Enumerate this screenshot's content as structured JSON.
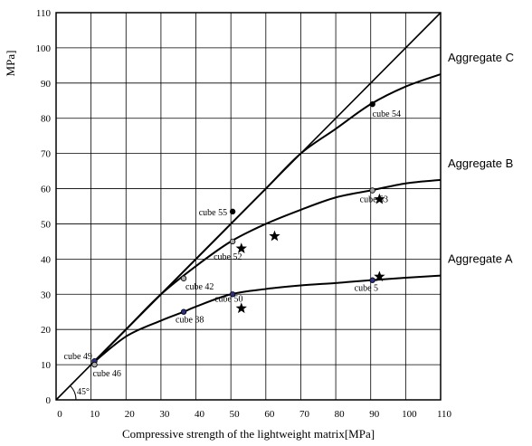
{
  "chart_data": {
    "type": "scatter",
    "title": "",
    "xlabel": "Compressive strength of the lightweight matrix[MPa]",
    "ylabel": "MPa]",
    "xlim": [
      0,
      110
    ],
    "ylim": [
      0,
      110
    ],
    "xticks": [
      0,
      10,
      20,
      30,
      40,
      50,
      60,
      70,
      80,
      90,
      100,
      110
    ],
    "yticks": [
      0,
      10,
      20,
      30,
      40,
      50,
      60,
      70,
      80,
      90,
      100,
      110
    ],
    "grid": true,
    "angle_label": "45°",
    "reference_line": {
      "x": [
        0,
        110
      ],
      "y": [
        0,
        110
      ]
    },
    "curves": [
      {
        "name": "Aggregate C",
        "x": [
          10,
          20,
          30,
          40,
          50,
          60,
          70,
          80,
          90,
          100,
          110
        ],
        "y": [
          10,
          20,
          30,
          40,
          50,
          60,
          70,
          77,
          84,
          89,
          92.5
        ]
      },
      {
        "name": "Aggregate B",
        "x": [
          10,
          20,
          30,
          40,
          50,
          60,
          70,
          80,
          90,
          100,
          110
        ],
        "y": [
          10,
          20,
          30,
          38,
          45,
          50,
          54,
          57.5,
          59.5,
          61.5,
          62.5
        ]
      },
      {
        "name": "Aggregate A",
        "x": [
          10,
          20,
          30,
          36.5,
          40,
          50,
          60,
          70,
          80,
          90,
          100,
          110
        ],
        "y": [
          10,
          18,
          22.5,
          25,
          26.5,
          30,
          31.5,
          32.5,
          33.2,
          34,
          34.7,
          35.3
        ]
      }
    ],
    "points": [
      {
        "label": "cube 54",
        "x": 90.5,
        "y": 84,
        "color": "#000000"
      },
      {
        "label": "cube 55",
        "x": 50.5,
        "y": 53.5,
        "color": "#000000"
      },
      {
        "label": "cube 53",
        "x": 90.5,
        "y": 59.5,
        "color": "#aaaaaa"
      },
      {
        "label": "cube 52",
        "x": 50.5,
        "y": 45,
        "color": "#aaaaaa"
      },
      {
        "label": "cube 42",
        "x": 36.5,
        "y": 34.5,
        "color": "#aaaaaa"
      },
      {
        "label": "cube 50",
        "x": 50.5,
        "y": 30,
        "color": "#2b2f86"
      },
      {
        "label": "cube 5",
        "x": 90.5,
        "y": 34,
        "color": "#2b2f86"
      },
      {
        "label": "cube 38",
        "x": 36.5,
        "y": 25,
        "color": "#2b2f86"
      },
      {
        "label": "cube 49",
        "x": 11,
        "y": 11,
        "color": "#2b2f86"
      },
      {
        "label": "cube 46",
        "x": 11,
        "y": 10,
        "color": "#aaaaaa"
      }
    ],
    "stars": [
      {
        "x": 53,
        "y": 43
      },
      {
        "x": 53,
        "y": 26
      },
      {
        "x": 62.5,
        "y": 46.5
      },
      {
        "x": 92.5,
        "y": 57
      },
      {
        "x": 92.5,
        "y": 35
      }
    ]
  }
}
